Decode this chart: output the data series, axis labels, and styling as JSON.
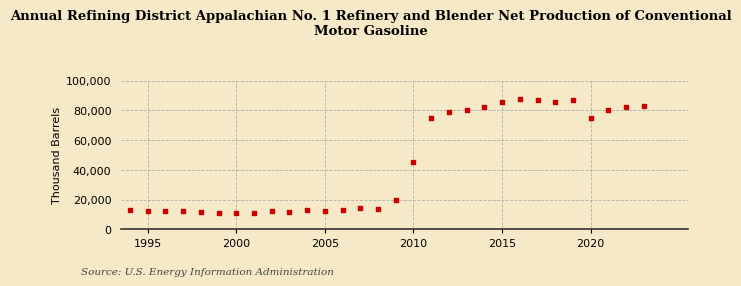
{
  "title_line1": "Annual Refining District Appalachian No. 1 Refinery and Blender Net Production of Conventional",
  "title_line2": "Motor Gasoline",
  "ylabel": "Thousand Barrels",
  "source": "Source: U.S. Energy Information Administration",
  "background_color": "#f5e9c8",
  "plot_background_color": "#f5e9c8",
  "marker_color": "#cc0000",
  "years": [
    1994,
    1995,
    1996,
    1997,
    1998,
    1999,
    2000,
    2001,
    2002,
    2003,
    2004,
    2005,
    2006,
    2007,
    2008,
    2009,
    2010,
    2011,
    2012,
    2013,
    2014,
    2015,
    2016,
    2017,
    2018,
    2019,
    2020,
    2021,
    2022,
    2023
  ],
  "values": [
    13000,
    12500,
    12000,
    12000,
    11500,
    11200,
    10800,
    11000,
    12000,
    11500,
    13000,
    12500,
    13000,
    14000,
    13500,
    20000,
    45000,
    75000,
    79000,
    80000,
    82000,
    86000,
    88000,
    87000,
    86000,
    87000,
    75000,
    80000,
    82000,
    83000
  ],
  "xlim": [
    1993.5,
    2025.5
  ],
  "ylim": [
    0,
    100000
  ],
  "yticks": [
    0,
    20000,
    40000,
    60000,
    80000,
    100000
  ],
  "xticks": [
    1995,
    2000,
    2005,
    2010,
    2015,
    2020
  ],
  "grid_color": "#aaaaaa",
  "title_fontsize": 9.5,
  "axis_fontsize": 8,
  "tick_fontsize": 8,
  "source_fontsize": 7.5
}
